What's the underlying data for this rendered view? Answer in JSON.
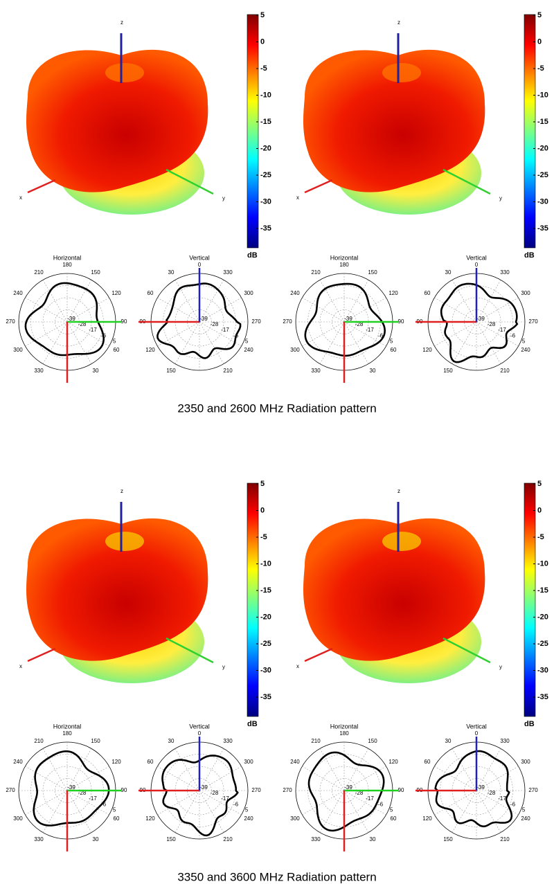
{
  "figures": [
    {
      "caption": "2350 and 2600 MHz Radiation pattern",
      "panels": [
        {
          "axes": {
            "x": "x",
            "y": "y",
            "z": "z"
          },
          "colorbar": {
            "ticks": [
              5,
              0,
              -5,
              -10,
              -15,
              -20,
              -25,
              -30,
              -35
            ],
            "unit": "dB"
          },
          "horizontal": {
            "title": "Horizontal",
            "angles": [
              180,
              150,
              120,
              90,
              60,
              30,
              330,
              300,
              270,
              240,
              210
            ],
            "radii": [
              -39,
              -28,
              -17,
              -6,
              5
            ]
          },
          "vertical": {
            "title": "Vertical",
            "angles": [
              0,
              330,
              300,
              270,
              240,
              210,
              150,
              120,
              90,
              60,
              30
            ],
            "radii": [
              -39,
              -28,
              -17,
              -6,
              5
            ]
          }
        },
        {
          "axes": {
            "x": "x",
            "y": "y",
            "z": "z"
          },
          "colorbar": {
            "ticks": [
              5,
              0,
              -5,
              -10,
              -15,
              -20,
              -25,
              -30,
              -35
            ],
            "unit": "dB"
          },
          "horizontal": {
            "title": "Horizontal",
            "angles": [
              180,
              150,
              120,
              90,
              60,
              30,
              330,
              300,
              270,
              240,
              210
            ],
            "radii": [
              -39,
              -28,
              -17,
              -6,
              5
            ]
          },
          "vertical": {
            "title": "Vertical",
            "angles": [
              0,
              330,
              300,
              270,
              240,
              210,
              150,
              120,
              90,
              60,
              30
            ],
            "radii": [
              -39,
              -28,
              -17,
              -6,
              5
            ]
          }
        }
      ]
    },
    {
      "caption": "3350 and 3600 MHz Radiation pattern",
      "panels": [
        {
          "axes": {
            "x": "x",
            "y": "y",
            "z": "z"
          },
          "colorbar": {
            "ticks": [
              5,
              0,
              -5,
              -10,
              -15,
              -20,
              -25,
              -30,
              -35
            ],
            "unit": "dB"
          },
          "horizontal": {
            "title": "Horizontal",
            "angles": [
              180,
              150,
              120,
              90,
              60,
              30,
              330,
              300,
              270,
              240,
              210
            ],
            "radii": [
              -39,
              -28,
              -17,
              -6,
              5
            ]
          },
          "vertical": {
            "title": "Vertical",
            "angles": [
              0,
              330,
              300,
              270,
              240,
              210,
              150,
              120,
              90,
              60,
              30
            ],
            "radii": [
              -39,
              -28,
              -17,
              -6,
              5
            ]
          }
        },
        {
          "axes": {
            "x": "x",
            "y": "y",
            "z": "z"
          },
          "colorbar": {
            "ticks": [
              5,
              0,
              -5,
              -10,
              -15,
              -20,
              -25,
              -30,
              -35
            ],
            "unit": "dB"
          },
          "horizontal": {
            "title": "Horizontal",
            "angles": [
              180,
              150,
              120,
              90,
              60,
              30,
              330,
              300,
              270,
              240,
              210
            ],
            "radii": [
              -39,
              -28,
              -17,
              -6,
              5
            ]
          },
          "vertical": {
            "title": "Vertical",
            "angles": [
              0,
              330,
              300,
              270,
              240,
              210,
              150,
              120,
              90,
              60,
              30
            ],
            "radii": [
              -39,
              -28,
              -17,
              -6,
              5
            ]
          }
        }
      ]
    }
  ]
}
